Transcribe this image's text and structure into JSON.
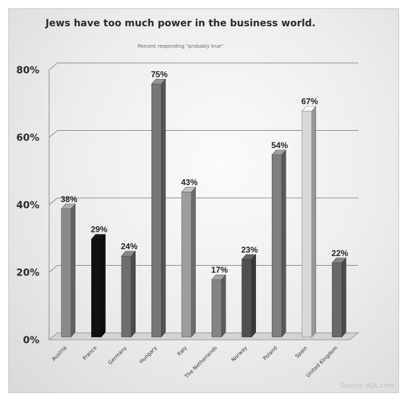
{
  "chart_data": {
    "type": "bar",
    "title": "Jews have too much power in the business world.",
    "subtitle": "Percent responding \"probably true\"",
    "categories": [
      "Austria",
      "France",
      "Germany",
      "Hungary",
      "Italy",
      "The Netherlands",
      "Norway",
      "Poland",
      "Spain",
      "United Kingdom"
    ],
    "values": [
      38,
      29,
      24,
      75,
      43,
      17,
      23,
      54,
      67,
      22
    ],
    "value_labels": [
      "38%",
      "29%",
      "24%",
      "75%",
      "43%",
      "17%",
      "23%",
      "54%",
      "67%",
      "22%"
    ],
    "bar_colors": [
      "#8a8a8a",
      "#111111",
      "#6e6e6e",
      "#777777",
      "#9c9c9c",
      "#848484",
      "#505050",
      "#7f7f7f",
      "#d8d8d8",
      "#6a6a6a"
    ],
    "ylim": [
      0,
      80
    ],
    "yticks": [
      0,
      20,
      40,
      60,
      80
    ],
    "ytick_labels": [
      "0%",
      "20%",
      "40%",
      "60%",
      "80%"
    ],
    "grid": true,
    "legend": "none",
    "xlabel": "",
    "ylabel": "",
    "source": "Source: ADL.com"
  }
}
